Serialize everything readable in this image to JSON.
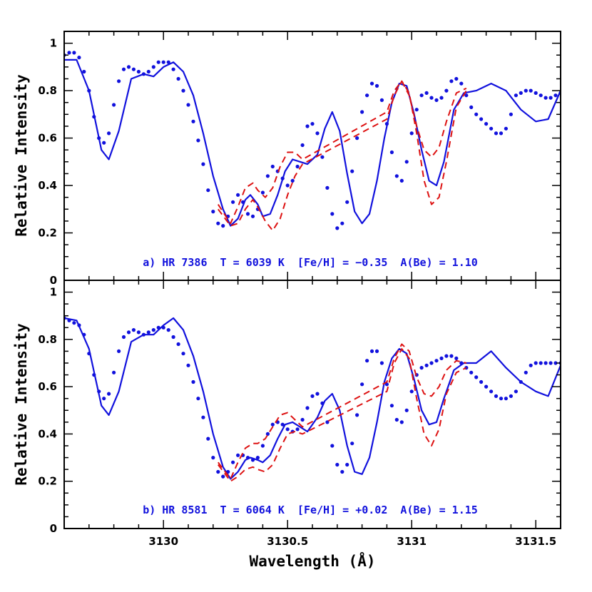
{
  "chart_data": [
    {
      "type": "line",
      "panel": "top",
      "annotation": "a) HR 7386  T = 6039 K  [Fe/H] = −0.35  A(Be) = 1.10",
      "ylabel": "Relative Intensity",
      "xlabel": "",
      "xlim": [
        3129.6,
        3131.6
      ],
      "ylim": [
        0,
        1.05
      ],
      "xticks": [
        "3130",
        "3130.5",
        "3131",
        "3131.5"
      ],
      "xtick_values": [
        3130,
        3130.5,
        3131,
        3131.5
      ],
      "yticks": [
        "0",
        "0.2",
        "0.4",
        "0.6",
        "0.8",
        "1"
      ],
      "ytick_values": [
        0,
        0.2,
        0.4,
        0.6,
        0.8,
        1
      ],
      "colors": {
        "model": "#1111dd",
        "observed": "#1111dd",
        "variant": "#dd1111"
      },
      "series": [
        {
          "style": "dotted-observed",
          "x": [
            3129.6,
            3129.62,
            3129.64,
            3129.66,
            3129.68,
            3129.7,
            3129.72,
            3129.74,
            3129.76,
            3129.78,
            3129.8,
            3129.82,
            3129.84,
            3129.86,
            3129.88,
            3129.9,
            3129.92,
            3129.94,
            3129.96,
            3129.98,
            3130.0,
            3130.02,
            3130.04,
            3130.06,
            3130.08,
            3130.1,
            3130.12,
            3130.14,
            3130.16,
            3130.18,
            3130.2,
            3130.22,
            3130.24,
            3130.26,
            3130.28,
            3130.3,
            3130.32,
            3130.34,
            3130.36,
            3130.38,
            3130.4,
            3130.42,
            3130.44,
            3130.46,
            3130.48,
            3130.5,
            3130.52,
            3130.54,
            3130.56,
            3130.58,
            3130.6,
            3130.62,
            3130.64,
            3130.66,
            3130.68,
            3130.7,
            3130.72,
            3130.74,
            3130.76,
            3130.78,
            3130.8,
            3130.82,
            3130.84,
            3130.86,
            3130.88,
            3130.9,
            3130.92,
            3130.94,
            3130.96,
            3130.98,
            3131.0,
            3131.02,
            3131.04,
            3131.06,
            3131.08,
            3131.1,
            3131.12,
            3131.14,
            3131.16,
            3131.18,
            3131.2,
            3131.22,
            3131.24,
            3131.26,
            3131.28,
            3131.3,
            3131.32,
            3131.34,
            3131.36,
            3131.38,
            3131.4,
            3131.42,
            3131.44,
            3131.46,
            3131.48,
            3131.5,
            3131.52,
            3131.54,
            3131.56,
            3131.58,
            3131.6
          ],
          "y": [
            0.95,
            0.96,
            0.96,
            0.94,
            0.88,
            0.8,
            0.69,
            0.6,
            0.58,
            0.62,
            0.74,
            0.84,
            0.89,
            0.9,
            0.89,
            0.88,
            0.87,
            0.88,
            0.9,
            0.92,
            0.92,
            0.92,
            0.89,
            0.85,
            0.8,
            0.74,
            0.67,
            0.59,
            0.49,
            0.38,
            0.29,
            0.24,
            0.23,
            0.27,
            0.33,
            0.36,
            0.33,
            0.28,
            0.27,
            0.3,
            0.37,
            0.44,
            0.48,
            0.46,
            0.43,
            0.4,
            0.42,
            0.48,
            0.57,
            0.65,
            0.66,
            0.62,
            0.52,
            0.39,
            0.28,
            0.22,
            0.24,
            0.33,
            0.46,
            0.6,
            0.71,
            0.78,
            0.83,
            0.82,
            0.76,
            0.66,
            0.54,
            0.44,
            0.42,
            0.5,
            0.62,
            0.72,
            0.78,
            0.79,
            0.77,
            0.76,
            0.77,
            0.8,
            0.84,
            0.85,
            0.83,
            0.78,
            0.73,
            0.7,
            0.68,
            0.66,
            0.64,
            0.62,
            0.62,
            0.64,
            0.7,
            0.78,
            0.79,
            0.8,
            0.8,
            0.79,
            0.78,
            0.77,
            0.77,
            0.78,
            0.79
          ]
        },
        {
          "style": "solid-model",
          "x": [
            3129.6,
            3129.65,
            3129.7,
            3129.75,
            3129.78,
            3129.82,
            3129.87,
            3129.92,
            3129.96,
            3130.0,
            3130.04,
            3130.08,
            3130.12,
            3130.16,
            3130.2,
            3130.24,
            3130.27,
            3130.3,
            3130.33,
            3130.35,
            3130.38,
            3130.4,
            3130.43,
            3130.46,
            3130.49,
            3130.52,
            3130.55,
            3130.58,
            3130.62,
            3130.65,
            3130.68,
            3130.71,
            3130.74,
            3130.77,
            3130.8,
            3130.83,
            3130.86,
            3130.89,
            3130.92,
            3130.95,
            3130.98,
            3131.01,
            3131.04,
            3131.07,
            3131.1,
            3131.13,
            3131.17,
            3131.21,
            3131.26,
            3131.32,
            3131.38,
            3131.44,
            3131.5,
            3131.55,
            3131.6
          ],
          "y": [
            0.93,
            0.93,
            0.8,
            0.55,
            0.51,
            0.63,
            0.85,
            0.87,
            0.86,
            0.9,
            0.92,
            0.88,
            0.78,
            0.62,
            0.44,
            0.3,
            0.23,
            0.26,
            0.34,
            0.36,
            0.32,
            0.27,
            0.28,
            0.36,
            0.46,
            0.51,
            0.5,
            0.49,
            0.53,
            0.64,
            0.71,
            0.63,
            0.45,
            0.29,
            0.24,
            0.28,
            0.42,
            0.6,
            0.75,
            0.83,
            0.82,
            0.7,
            0.55,
            0.42,
            0.4,
            0.5,
            0.72,
            0.79,
            0.8,
            0.83,
            0.8,
            0.72,
            0.67,
            0.68,
            0.8
          ]
        },
        {
          "style": "dashed-variant-high",
          "x": [
            3130.22,
            3130.27,
            3130.3,
            3130.33,
            3130.36,
            3130.38,
            3130.41,
            3130.44,
            3130.47,
            3130.5,
            3130.53,
            3130.56,
            3130.9,
            3130.93,
            3130.96,
            3130.99,
            3131.02,
            3131.05,
            3131.08,
            3131.11,
            3131.14,
            3131.18,
            3131.22
          ],
          "y": [
            0.32,
            0.24,
            0.31,
            0.39,
            0.41,
            0.38,
            0.35,
            0.39,
            0.48,
            0.54,
            0.54,
            0.51,
            0.71,
            0.8,
            0.84,
            0.78,
            0.65,
            0.55,
            0.52,
            0.56,
            0.67,
            0.79,
            0.81
          ]
        },
        {
          "style": "dashed-variant-low",
          "x": [
            3130.22,
            3130.27,
            3130.3,
            3130.33,
            3130.36,
            3130.38,
            3130.41,
            3130.44,
            3130.47,
            3130.5,
            3130.53,
            3130.56,
            3130.9,
            3130.93,
            3130.96,
            3130.99,
            3131.02,
            3131.05,
            3131.08,
            3131.11,
            3131.14,
            3131.18,
            3131.22
          ],
          "y": [
            0.3,
            0.23,
            0.24,
            0.3,
            0.34,
            0.31,
            0.25,
            0.21,
            0.26,
            0.36,
            0.44,
            0.49,
            0.68,
            0.78,
            0.84,
            0.79,
            0.62,
            0.42,
            0.32,
            0.35,
            0.5,
            0.73,
            0.8
          ]
        }
      ]
    },
    {
      "type": "line",
      "panel": "bottom",
      "annotation": "b) HR 8581  T = 6064 K  [Fe/H] = +0.02  A(Be) = 1.15",
      "ylabel": "Relative Intensity",
      "xlabel": "Wavelength (Å)",
      "xlim": [
        3129.6,
        3131.6
      ],
      "ylim": [
        0,
        1.05
      ],
      "xticks": [
        "3130",
        "3130.5",
        "3131",
        "3131.5"
      ],
      "xtick_values": [
        3130,
        3130.5,
        3131,
        3131.5
      ],
      "yticks": [
        "0",
        "0.2",
        "0.4",
        "0.6",
        "0.8",
        "1"
      ],
      "ytick_values": [
        0,
        0.2,
        0.4,
        0.6,
        0.8,
        1
      ],
      "colors": {
        "model": "#1111dd",
        "observed": "#1111dd",
        "variant": "#dd1111"
      },
      "series": [
        {
          "style": "dotted-observed",
          "x": [
            3129.6,
            3129.62,
            3129.64,
            3129.66,
            3129.68,
            3129.7,
            3129.72,
            3129.74,
            3129.76,
            3129.78,
            3129.8,
            3129.82,
            3129.84,
            3129.86,
            3129.88,
            3129.9,
            3129.92,
            3129.94,
            3129.96,
            3129.98,
            3130.0,
            3130.02,
            3130.04,
            3130.06,
            3130.08,
            3130.1,
            3130.12,
            3130.14,
            3130.16,
            3130.18,
            3130.2,
            3130.22,
            3130.24,
            3130.26,
            3130.28,
            3130.3,
            3130.32,
            3130.34,
            3130.36,
            3130.38,
            3130.4,
            3130.42,
            3130.44,
            3130.46,
            3130.48,
            3130.5,
            3130.52,
            3130.54,
            3130.56,
            3130.58,
            3130.6,
            3130.62,
            3130.64,
            3130.66,
            3130.68,
            3130.7,
            3130.72,
            3130.74,
            3130.76,
            3130.78,
            3130.8,
            3130.82,
            3130.84,
            3130.86,
            3130.88,
            3130.9,
            3130.92,
            3130.94,
            3130.96,
            3130.98,
            3131.0,
            3131.02,
            3131.04,
            3131.06,
            3131.08,
            3131.1,
            3131.12,
            3131.14,
            3131.16,
            3131.18,
            3131.2,
            3131.22,
            3131.24,
            3131.26,
            3131.28,
            3131.3,
            3131.32,
            3131.34,
            3131.36,
            3131.38,
            3131.4,
            3131.42,
            3131.44,
            3131.46,
            3131.48,
            3131.5,
            3131.52,
            3131.54,
            3131.56,
            3131.58,
            3131.6
          ],
          "y": [
            0.89,
            0.88,
            0.87,
            0.86,
            0.82,
            0.74,
            0.65,
            0.58,
            0.55,
            0.57,
            0.66,
            0.75,
            0.81,
            0.83,
            0.84,
            0.83,
            0.82,
            0.83,
            0.84,
            0.85,
            0.85,
            0.84,
            0.81,
            0.78,
            0.74,
            0.69,
            0.62,
            0.55,
            0.47,
            0.38,
            0.3,
            0.24,
            0.22,
            0.24,
            0.28,
            0.31,
            0.31,
            0.3,
            0.29,
            0.3,
            0.35,
            0.4,
            0.44,
            0.45,
            0.44,
            0.42,
            0.41,
            0.42,
            0.46,
            0.51,
            0.56,
            0.57,
            0.53,
            0.45,
            0.35,
            0.27,
            0.24,
            0.27,
            0.36,
            0.48,
            0.61,
            0.71,
            0.75,
            0.75,
            0.7,
            0.61,
            0.52,
            0.46,
            0.45,
            0.5,
            0.58,
            0.65,
            0.68,
            0.69,
            0.7,
            0.71,
            0.72,
            0.73,
            0.73,
            0.72,
            0.7,
            0.68,
            0.66,
            0.64,
            0.62,
            0.6,
            0.58,
            0.56,
            0.55,
            0.55,
            0.56,
            0.58,
            0.62,
            0.66,
            0.69,
            0.7,
            0.7,
            0.7,
            0.7,
            0.7,
            0.7
          ]
        },
        {
          "style": "solid-model",
          "x": [
            3129.6,
            3129.65,
            3129.7,
            3129.75,
            3129.78,
            3129.82,
            3129.87,
            3129.92,
            3129.96,
            3130.0,
            3130.04,
            3130.08,
            3130.12,
            3130.16,
            3130.2,
            3130.24,
            3130.27,
            3130.3,
            3130.33,
            3130.35,
            3130.38,
            3130.4,
            3130.43,
            3130.46,
            3130.49,
            3130.52,
            3130.55,
            3130.58,
            3130.62,
            3130.65,
            3130.68,
            3130.71,
            3130.74,
            3130.77,
            3130.8,
            3130.83,
            3130.86,
            3130.89,
            3130.92,
            3130.95,
            3130.98,
            3131.01,
            3131.04,
            3131.07,
            3131.1,
            3131.13,
            3131.17,
            3131.21,
            3131.26,
            3131.32,
            3131.38,
            3131.44,
            3131.5,
            3131.55,
            3131.6
          ],
          "y": [
            0.89,
            0.88,
            0.76,
            0.52,
            0.48,
            0.58,
            0.79,
            0.82,
            0.82,
            0.86,
            0.89,
            0.84,
            0.73,
            0.58,
            0.4,
            0.26,
            0.21,
            0.24,
            0.29,
            0.3,
            0.29,
            0.28,
            0.31,
            0.38,
            0.44,
            0.45,
            0.43,
            0.41,
            0.47,
            0.54,
            0.57,
            0.5,
            0.35,
            0.24,
            0.23,
            0.3,
            0.45,
            0.62,
            0.72,
            0.76,
            0.74,
            0.63,
            0.5,
            0.44,
            0.45,
            0.55,
            0.67,
            0.7,
            0.7,
            0.75,
            0.68,
            0.62,
            0.58,
            0.56,
            0.69
          ]
        },
        {
          "style": "dashed-variant-high",
          "x": [
            3130.22,
            3130.27,
            3130.3,
            3130.33,
            3130.36,
            3130.38,
            3130.41,
            3130.44,
            3130.47,
            3130.5,
            3130.53,
            3130.56,
            3130.9,
            3130.93,
            3130.96,
            3130.99,
            3131.02,
            3131.05,
            3131.08,
            3131.11,
            3131.14,
            3131.18,
            3131.22
          ],
          "y": [
            0.28,
            0.21,
            0.28,
            0.34,
            0.36,
            0.36,
            0.38,
            0.43,
            0.48,
            0.49,
            0.46,
            0.43,
            0.62,
            0.72,
            0.78,
            0.75,
            0.64,
            0.57,
            0.56,
            0.6,
            0.67,
            0.71,
            0.7
          ]
        },
        {
          "style": "dashed-variant-low",
          "x": [
            3130.22,
            3130.27,
            3130.3,
            3130.33,
            3130.36,
            3130.38,
            3130.41,
            3130.44,
            3130.47,
            3130.5,
            3130.53,
            3130.56,
            3130.9,
            3130.93,
            3130.96,
            3130.99,
            3131.02,
            3131.05,
            3131.08,
            3131.11,
            3131.14,
            3131.18,
            3131.22
          ],
          "y": [
            0.27,
            0.2,
            0.22,
            0.25,
            0.26,
            0.25,
            0.24,
            0.27,
            0.34,
            0.4,
            0.41,
            0.4,
            0.58,
            0.7,
            0.76,
            0.72,
            0.55,
            0.4,
            0.35,
            0.42,
            0.57,
            0.66,
            0.68
          ]
        }
      ]
    }
  ]
}
